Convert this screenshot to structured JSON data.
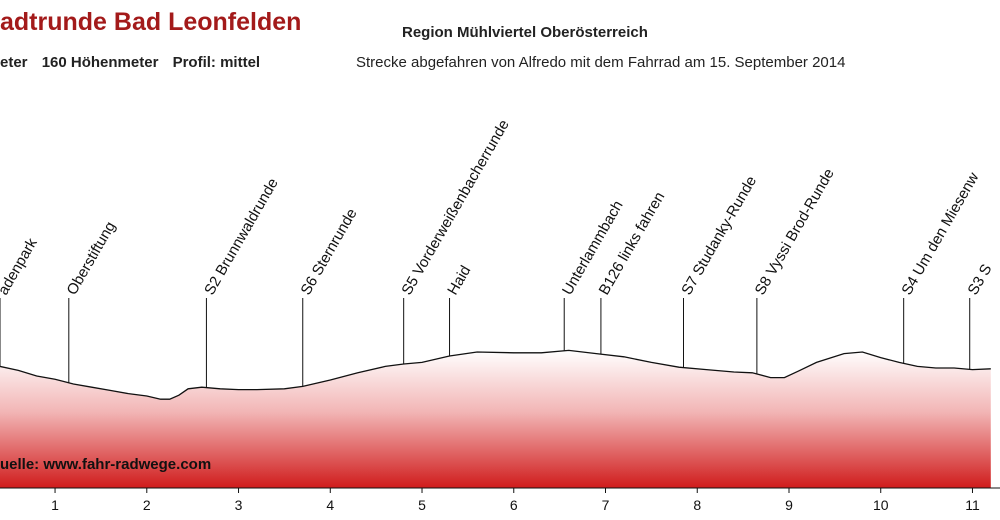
{
  "header": {
    "title": "adtrunde Bad Leonfelden",
    "region": "Region Mühlviertel Oberösterreich",
    "distance": "eter",
    "elevation": "160 Höhenmeter",
    "profile": "Profil: mittel",
    "note": "Strecke abgefahren von Alfredo mit dem Fahrrad am 15. September 2014"
  },
  "source": "uelle: www.fahr-radwege.com",
  "colors": {
    "title": "#a31a1a",
    "fill_top": "#ffffff",
    "fill_mid": "#f2b5b5",
    "fill_bottom": "#d01c1c",
    "line": "#111111"
  },
  "chart_data": {
    "type": "area",
    "title": "adtrunde Bad Leonfelden",
    "xlabel": "",
    "ylabel": "",
    "xlim": [
      0.4,
      11.3
    ],
    "ylim": [
      0,
      100
    ],
    "x_ticks": [
      1,
      2,
      3,
      4,
      5,
      6,
      7,
      8,
      9,
      10,
      11
    ],
    "x_tick_labels": [
      "1",
      "2",
      "3",
      "4",
      "5",
      "6",
      "7",
      "8",
      "9",
      "10",
      "11"
    ],
    "grid": false,
    "profile": {
      "x": [
        0.4,
        0.6,
        0.8,
        1.0,
        1.2,
        1.4,
        1.6,
        1.8,
        2.0,
        2.15,
        2.25,
        2.35,
        2.45,
        2.6,
        2.8,
        3.0,
        3.2,
        3.5,
        3.7,
        4.0,
        4.3,
        4.6,
        4.8,
        5.0,
        5.3,
        5.6,
        6.0,
        6.3,
        6.6,
        6.9,
        7.2,
        7.5,
        7.8,
        8.1,
        8.4,
        8.6,
        8.8,
        8.95,
        9.1,
        9.3,
        9.6,
        9.8,
        10.0,
        10.2,
        10.4,
        10.6,
        10.8,
        11.0,
        11.2
      ],
      "y": [
        52,
        47,
        40,
        36,
        30,
        26,
        22,
        18,
        15,
        11,
        11,
        16,
        24,
        26,
        24,
        23,
        23,
        24,
        27,
        35,
        44,
        52,
        55,
        57,
        65,
        70,
        69,
        69,
        72,
        68,
        64,
        57,
        51,
        48,
        45,
        44,
        38,
        38,
        46,
        57,
        68,
        70,
        63,
        57,
        52,
        50,
        50,
        48,
        49
      ]
    },
    "waypoints": [
      {
        "label": "adenpark",
        "x": 0.4
      },
      {
        "label": "Oberstiftung",
        "x": 1.15
      },
      {
        "label": "S2 Brunnwaldrunde",
        "x": 2.65
      },
      {
        "label": "S6 Sternrunde",
        "x": 3.7
      },
      {
        "label": "S5 Vorderweißenbacherrunde",
        "x": 4.8
      },
      {
        "label": "Haid",
        "x": 5.3
      },
      {
        "label": "Unterlammbach",
        "x": 6.55
      },
      {
        "label": "B126 links fahren",
        "x": 6.95
      },
      {
        "label": "S7 Studanky-Runde",
        "x": 7.85
      },
      {
        "label": "S8 Vyssi Brod-Runde",
        "x": 8.65
      },
      {
        "label": "S4 Um den Miesenw",
        "x": 10.25
      },
      {
        "label": "S3 S",
        "x": 10.97
      }
    ]
  }
}
